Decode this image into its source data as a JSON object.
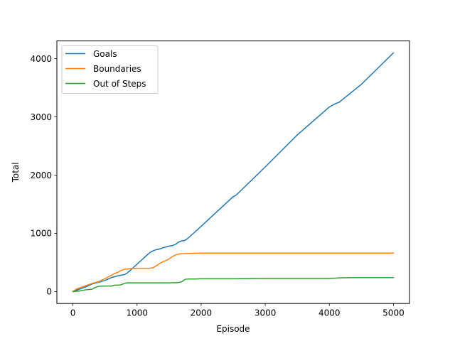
{
  "chart_data": {
    "type": "line",
    "title": "",
    "xlabel": "Episode",
    "ylabel": "Total",
    "xlim": [
      -250,
      5250
    ],
    "ylim": [
      -205,
      4305
    ],
    "xticks": [
      0,
      1000,
      2000,
      3000,
      4000,
      5000
    ],
    "yticks": [
      0,
      1000,
      2000,
      3000,
      4000
    ],
    "xtick_labels": [
      "0",
      "1000",
      "2000",
      "3000",
      "4000",
      "5000"
    ],
    "ytick_labels": [
      "0",
      "1000",
      "2000",
      "3000",
      "4000"
    ],
    "grid": false,
    "legend_position": "top-left",
    "series": [
      {
        "name": "Goals",
        "color": "#1f77b4",
        "x": [
          0,
          100,
          200,
          300,
          400,
          500,
          600,
          700,
          800,
          850,
          900,
          1000,
          1100,
          1200,
          1250,
          1300,
          1350,
          1400,
          1500,
          1550,
          1600,
          1650,
          1700,
          1750,
          1800,
          2000,
          2500,
          2550,
          3000,
          3500,
          4000,
          4100,
          4150,
          4500,
          5000
        ],
        "y": [
          0,
          40,
          80,
          130,
          160,
          190,
          240,
          270,
          290,
          320,
          370,
          470,
          570,
          670,
          700,
          720,
          730,
          750,
          780,
          790,
          810,
          850,
          870,
          880,
          920,
          1120,
          1630,
          1660,
          2140,
          2690,
          3170,
          3230,
          3250,
          3560,
          4100
        ]
      },
      {
        "name": "Boundaries",
        "color": "#ff7f0e",
        "x": [
          0,
          50,
          100,
          200,
          300,
          400,
          500,
          600,
          650,
          700,
          750,
          800,
          900,
          1000,
          1100,
          1200,
          1250,
          1300,
          1350,
          1400,
          1450,
          1500,
          1550,
          1600,
          1650,
          1700,
          1800,
          2000,
          3000,
          4000,
          5000
        ],
        "y": [
          0,
          40,
          60,
          100,
          140,
          170,
          220,
          280,
          310,
          330,
          360,
          380,
          395,
          400,
          400,
          400,
          410,
          440,
          480,
          510,
          530,
          560,
          600,
          630,
          645,
          650,
          655,
          660,
          660,
          660,
          660
        ]
      },
      {
        "name": "Out of Steps",
        "color": "#2ca02c",
        "x": [
          0,
          100,
          200,
          300,
          350,
          400,
          500,
          600,
          650,
          700,
          750,
          800,
          850,
          1000,
          1200,
          1500,
          1650,
          1700,
          1750,
          1800,
          1900,
          2000,
          2500,
          3000,
          3500,
          4000,
          4100,
          4150,
          4400,
          5000
        ],
        "y": [
          0,
          10,
          30,
          40,
          70,
          90,
          95,
          95,
          110,
          110,
          115,
          140,
          150,
          150,
          150,
          150,
          155,
          170,
          210,
          215,
          215,
          220,
          220,
          225,
          225,
          225,
          230,
          235,
          240,
          240
        ]
      }
    ]
  }
}
